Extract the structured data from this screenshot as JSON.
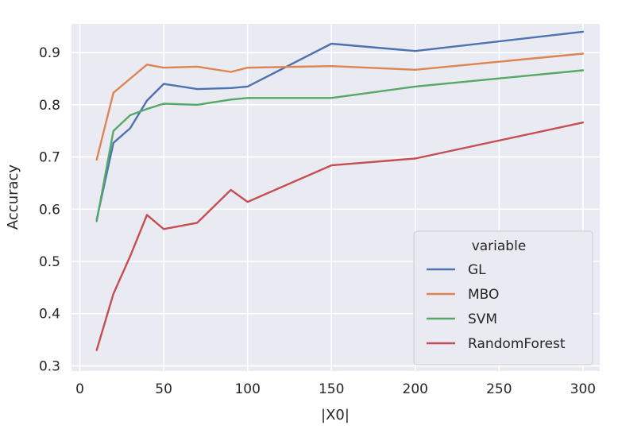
{
  "chart_data": {
    "type": "line",
    "xlabel": "|X0|",
    "ylabel": "Accuracy",
    "xlim": [
      -5,
      310
    ],
    "ylim": [
      0.29,
      0.955
    ],
    "xticks": [
      0,
      50,
      100,
      150,
      200,
      250,
      300
    ],
    "yticks": [
      0.3,
      0.4,
      0.5,
      0.6,
      0.7,
      0.8,
      0.9
    ],
    "grid": true,
    "legend": {
      "title": "variable",
      "position": "lower-right"
    },
    "series": [
      {
        "name": "GL",
        "color": "#4c72b0",
        "x": [
          10,
          20,
          30,
          40,
          50,
          70,
          90,
          100,
          150,
          200,
          300
        ],
        "y": [
          0.58,
          0.727,
          0.755,
          0.808,
          0.84,
          0.83,
          0.832,
          0.835,
          0.917,
          0.903,
          0.94
        ]
      },
      {
        "name": "MBO",
        "color": "#dd8452",
        "x": [
          10,
          20,
          30,
          40,
          50,
          70,
          90,
          100,
          150,
          200,
          300
        ],
        "y": [
          0.695,
          0.823,
          0.85,
          0.877,
          0.871,
          0.873,
          0.863,
          0.871,
          0.874,
          0.867,
          0.898
        ]
      },
      {
        "name": "SVM",
        "color": "#55a868",
        "x": [
          10,
          20,
          30,
          40,
          50,
          70,
          90,
          100,
          150,
          200,
          300
        ],
        "y": [
          0.577,
          0.75,
          0.78,
          0.792,
          0.802,
          0.8,
          0.81,
          0.813,
          0.813,
          0.835,
          0.866
        ]
      },
      {
        "name": "RandomForest",
        "color": "#c44e52",
        "x": [
          10,
          20,
          30,
          40,
          50,
          70,
          90,
          100,
          150,
          200,
          300
        ],
        "y": [
          0.33,
          0.438,
          0.51,
          0.589,
          0.562,
          0.574,
          0.637,
          0.614,
          0.684,
          0.697,
          0.766
        ]
      }
    ]
  }
}
